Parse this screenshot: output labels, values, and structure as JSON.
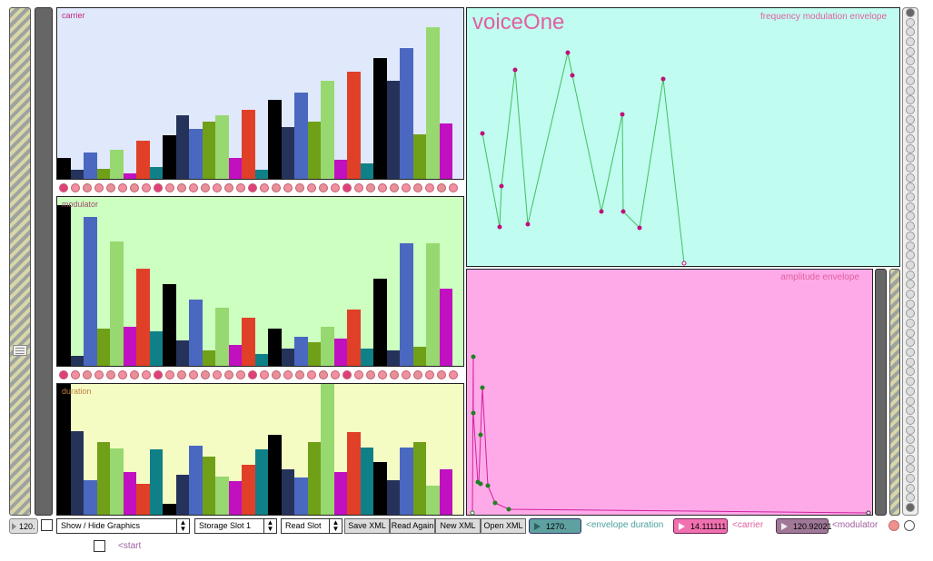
{
  "left_panels": {
    "carrier_label": "carrier",
    "modulator_label": "modulator",
    "duration_label": "duration"
  },
  "envelopes": {
    "title": "voiceOne",
    "fm_label": "frequency modulation envelope",
    "amp_label": "amplitude envelope"
  },
  "toolbar": {
    "tempo_value": "120.",
    "graphics_menu": "Show / Hide Graphics",
    "storage_menu": "Storage Slot 1",
    "read_menu": "Read Slot",
    "save_xml": "Save XML",
    "read_again": "Read Again",
    "new_xml": "New XML",
    "open_xml": "Open XML",
    "envelope_duration_value": "1270.",
    "envelope_duration_label": "<envelope duration",
    "carrier_value": "14.111111",
    "carrier_label": "<carrier",
    "modulator_value": "120.92021",
    "modulator_label": "<modulator",
    "start_label": "<start"
  },
  "colors": {
    "carrier_bg": "#e0e8fc",
    "modulator_bg": "#ccffc0",
    "duration_bg": "#f4fcc4",
    "fm_bg": "#c0fcf0",
    "amp_bg": "#ffaae8",
    "accent_pink": "#e060a0",
    "bar_palette": [
      "#000000",
      "#25335b",
      "#4a68c0",
      "#70a018",
      "#98d870",
      "#c010c0",
      "#e04028",
      "#108088"
    ]
  },
  "icons": {
    "slider_grip": "grip-lines-icon",
    "menu_arrows": "up-down-arrows-icon",
    "number_triangle": "play-triangle-icon"
  }
}
